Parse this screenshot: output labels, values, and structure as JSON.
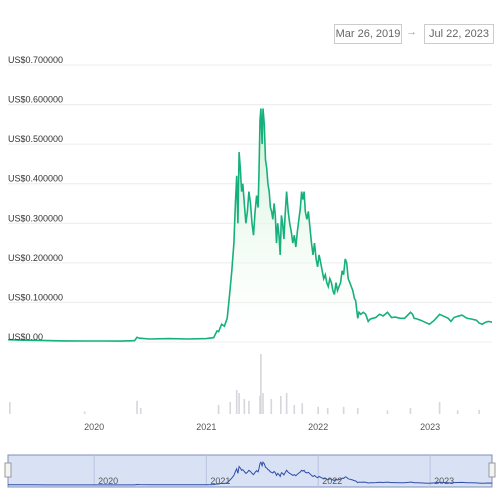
{
  "range": {
    "from": "Mar 26, 2019",
    "arrow": "→",
    "to": "Jul 22, 2023"
  },
  "colors": {
    "line": "#16b07c",
    "fill_top": "#c7eecf",
    "volume": "#d6d6dc",
    "navigator_bg": "#d9e2f5",
    "navigator_line": "#2e4da6",
    "grid": "#ececec"
  },
  "chart_data": {
    "type": "line",
    "title": "",
    "xlabel": "",
    "ylabel": "",
    "ylim": [
      0,
      0.7
    ],
    "y_ticks": [
      {
        "value": 0.0,
        "label": "US$0.00"
      },
      {
        "value": 0.1,
        "label": "US$0.100000"
      },
      {
        "value": 0.2,
        "label": "US$0.200000"
      },
      {
        "value": 0.3,
        "label": "US$0.300000"
      },
      {
        "value": 0.4,
        "label": "US$0.400000"
      },
      {
        "value": 0.5,
        "label": "US$0.500000"
      },
      {
        "value": 0.6,
        "label": "US$0.600000"
      },
      {
        "value": 0.7,
        "label": "US$0.700000"
      }
    ],
    "xlim": [
      "2019-03-26",
      "2023-07-22"
    ],
    "x_ticks": [
      {
        "date": "2020-01-01",
        "label": "2020"
      },
      {
        "date": "2021-01-01",
        "label": "2021"
      },
      {
        "date": "2022-01-01",
        "label": "2022"
      },
      {
        "date": "2023-01-01",
        "label": "2023"
      }
    ],
    "grid": true,
    "legend": "none",
    "price": [
      [
        "2019-03-26",
        0.0058
      ],
      [
        "2019-05-01",
        0.0048
      ],
      [
        "2019-06-15",
        0.0042
      ],
      [
        "2019-08-01",
        0.0035
      ],
      [
        "2019-10-01",
        0.0028
      ],
      [
        "2019-12-01",
        0.0025
      ],
      [
        "2020-02-01",
        0.0026
      ],
      [
        "2020-04-01",
        0.0024
      ],
      [
        "2020-05-12",
        0.0035
      ],
      [
        "2020-05-20",
        0.012
      ],
      [
        "2020-05-28",
        0.0095
      ],
      [
        "2020-07-01",
        0.0075
      ],
      [
        "2020-09-01",
        0.0085
      ],
      [
        "2020-11-01",
        0.0075
      ],
      [
        "2021-01-01",
        0.0085
      ],
      [
        "2021-01-25",
        0.011
      ],
      [
        "2021-02-05",
        0.028
      ],
      [
        "2021-02-10",
        0.026
      ],
      [
        "2021-02-20",
        0.045
      ],
      [
        "2021-03-01",
        0.04
      ],
      [
        "2021-03-10",
        0.06
      ],
      [
        "2021-03-18",
        0.12
      ],
      [
        "2021-03-25",
        0.18
      ],
      [
        "2021-04-01",
        0.25
      ],
      [
        "2021-04-06",
        0.35
      ],
      [
        "2021-04-10",
        0.42
      ],
      [
        "2021-04-14",
        0.3
      ],
      [
        "2021-04-18",
        0.48
      ],
      [
        "2021-04-22",
        0.44
      ],
      [
        "2021-04-26",
        0.38
      ],
      [
        "2021-04-30",
        0.4
      ],
      [
        "2021-05-05",
        0.35
      ],
      [
        "2021-05-10",
        0.3
      ],
      [
        "2021-05-15",
        0.33
      ],
      [
        "2021-05-20",
        0.38
      ],
      [
        "2021-05-25",
        0.35
      ],
      [
        "2021-05-30",
        0.3
      ],
      [
        "2021-06-04",
        0.27
      ],
      [
        "2021-06-09",
        0.33
      ],
      [
        "2021-06-14",
        0.37
      ],
      [
        "2021-06-19",
        0.34
      ],
      [
        "2021-06-22",
        0.43
      ],
      [
        "2021-06-25",
        0.56
      ],
      [
        "2021-06-28",
        0.59
      ],
      [
        "2021-07-02",
        0.5
      ],
      [
        "2021-07-05",
        0.59
      ],
      [
        "2021-07-09",
        0.55
      ],
      [
        "2021-07-13",
        0.46
      ],
      [
        "2021-07-17",
        0.44
      ],
      [
        "2021-07-21",
        0.4
      ],
      [
        "2021-07-25",
        0.38
      ],
      [
        "2021-07-29",
        0.34
      ],
      [
        "2021-08-02",
        0.33
      ],
      [
        "2021-08-06",
        0.31
      ],
      [
        "2021-08-10",
        0.35
      ],
      [
        "2021-08-14",
        0.32
      ],
      [
        "2021-08-18",
        0.25
      ],
      [
        "2021-08-22",
        0.3
      ],
      [
        "2021-08-26",
        0.27
      ],
      [
        "2021-08-30",
        0.22
      ],
      [
        "2021-09-03",
        0.32
      ],
      [
        "2021-09-07",
        0.3
      ],
      [
        "2021-09-11",
        0.26
      ],
      [
        "2021-09-15",
        0.32
      ],
      [
        "2021-09-20",
        0.38
      ],
      [
        "2021-09-25",
        0.33
      ],
      [
        "2021-09-30",
        0.3
      ],
      [
        "2021-10-05",
        0.28
      ],
      [
        "2021-10-10",
        0.25
      ],
      [
        "2021-10-15",
        0.27
      ],
      [
        "2021-10-20",
        0.24
      ],
      [
        "2021-10-25",
        0.28
      ],
      [
        "2021-10-30",
        0.31
      ],
      [
        "2021-11-04",
        0.34
      ],
      [
        "2021-11-08",
        0.38
      ],
      [
        "2021-11-12",
        0.36
      ],
      [
        "2021-11-16",
        0.38
      ],
      [
        "2021-11-20",
        0.33
      ],
      [
        "2021-11-25",
        0.31
      ],
      [
        "2021-11-30",
        0.33
      ],
      [
        "2021-12-05",
        0.29
      ],
      [
        "2021-12-10",
        0.25
      ],
      [
        "2021-12-15",
        0.22
      ],
      [
        "2021-12-20",
        0.25
      ],
      [
        "2021-12-25",
        0.21
      ],
      [
        "2021-12-30",
        0.19
      ],
      [
        "2022-01-04",
        0.22
      ],
      [
        "2022-01-09",
        0.2
      ],
      [
        "2022-01-14",
        0.18
      ],
      [
        "2022-01-19",
        0.16
      ],
      [
        "2022-01-24",
        0.17
      ],
      [
        "2022-01-29",
        0.15
      ],
      [
        "2022-02-03",
        0.14
      ],
      [
        "2022-02-08",
        0.16
      ],
      [
        "2022-02-13",
        0.15
      ],
      [
        "2022-02-18",
        0.13
      ],
      [
        "2022-02-23",
        0.12
      ],
      [
        "2022-02-28",
        0.15
      ],
      [
        "2022-03-05",
        0.13
      ],
      [
        "2022-03-10",
        0.14
      ],
      [
        "2022-03-15",
        0.15
      ],
      [
        "2022-03-20",
        0.18
      ],
      [
        "2022-03-25",
        0.17
      ],
      [
        "2022-03-30",
        0.21
      ],
      [
        "2022-04-04",
        0.2
      ],
      [
        "2022-04-09",
        0.16
      ],
      [
        "2022-04-14",
        0.15
      ],
      [
        "2022-04-19",
        0.14
      ],
      [
        "2022-04-24",
        0.13
      ],
      [
        "2022-04-29",
        0.11
      ],
      [
        "2022-05-03",
        0.105
      ],
      [
        "2022-05-07",
        0.08
      ],
      [
        "2022-05-10",
        0.06
      ],
      [
        "2022-05-14",
        0.075
      ],
      [
        "2022-05-20",
        0.07
      ],
      [
        "2022-05-28",
        0.075
      ],
      [
        "2022-06-05",
        0.07
      ],
      [
        "2022-06-13",
        0.052
      ],
      [
        "2022-06-20",
        0.058
      ],
      [
        "2022-06-28",
        0.06
      ],
      [
        "2022-07-08",
        0.062
      ],
      [
        "2022-07-20",
        0.07
      ],
      [
        "2022-08-01",
        0.066
      ],
      [
        "2022-08-15",
        0.075
      ],
      [
        "2022-08-28",
        0.062
      ],
      [
        "2022-09-10",
        0.063
      ],
      [
        "2022-09-25",
        0.06
      ],
      [
        "2022-10-10",
        0.06
      ],
      [
        "2022-10-29",
        0.075
      ],
      [
        "2022-11-05",
        0.07
      ],
      [
        "2022-11-10",
        0.06
      ],
      [
        "2022-11-20",
        0.058
      ],
      [
        "2022-12-01",
        0.055
      ],
      [
        "2022-12-15",
        0.05
      ],
      [
        "2022-12-30",
        0.045
      ],
      [
        "2023-01-15",
        0.055
      ],
      [
        "2023-02-01",
        0.07
      ],
      [
        "2023-02-15",
        0.065
      ],
      [
        "2023-03-01",
        0.06
      ],
      [
        "2023-03-10",
        0.052
      ],
      [
        "2023-03-20",
        0.062
      ],
      [
        "2023-04-01",
        0.065
      ],
      [
        "2023-04-15",
        0.068
      ],
      [
        "2023-05-01",
        0.06
      ],
      [
        "2023-05-15",
        0.058
      ],
      [
        "2023-06-01",
        0.055
      ],
      [
        "2023-06-10",
        0.048
      ],
      [
        "2023-06-20",
        0.045
      ],
      [
        "2023-07-01",
        0.05
      ],
      [
        "2023-07-10",
        0.052
      ],
      [
        "2023-07-22",
        0.05
      ]
    ],
    "volume": [
      [
        "2019-04-01",
        0.2
      ],
      [
        "2019-12-01",
        0.04
      ],
      [
        "2020-05-20",
        0.22
      ],
      [
        "2020-06-01",
        0.1
      ],
      [
        "2021-02-10",
        0.15
      ],
      [
        "2021-03-20",
        0.2
      ],
      [
        "2021-04-10",
        0.4
      ],
      [
        "2021-04-18",
        0.35
      ],
      [
        "2021-05-05",
        0.25
      ],
      [
        "2021-05-20",
        0.22
      ],
      [
        "2021-06-25",
        0.3
      ],
      [
        "2021-06-28",
        1.0
      ],
      [
        "2021-07-05",
        0.35
      ],
      [
        "2021-08-01",
        0.25
      ],
      [
        "2021-09-01",
        0.3
      ],
      [
        "2021-09-20",
        0.35
      ],
      [
        "2021-10-15",
        0.15
      ],
      [
        "2021-11-10",
        0.18
      ],
      [
        "2022-01-01",
        0.12
      ],
      [
        "2022-02-01",
        0.1
      ],
      [
        "2022-03-25",
        0.12
      ],
      [
        "2022-05-10",
        0.1
      ],
      [
        "2022-08-15",
        0.06
      ],
      [
        "2022-10-29",
        0.1
      ],
      [
        "2023-02-01",
        0.2
      ],
      [
        "2023-04-01",
        0.06
      ],
      [
        "2023-06-10",
        0.07
      ]
    ]
  }
}
